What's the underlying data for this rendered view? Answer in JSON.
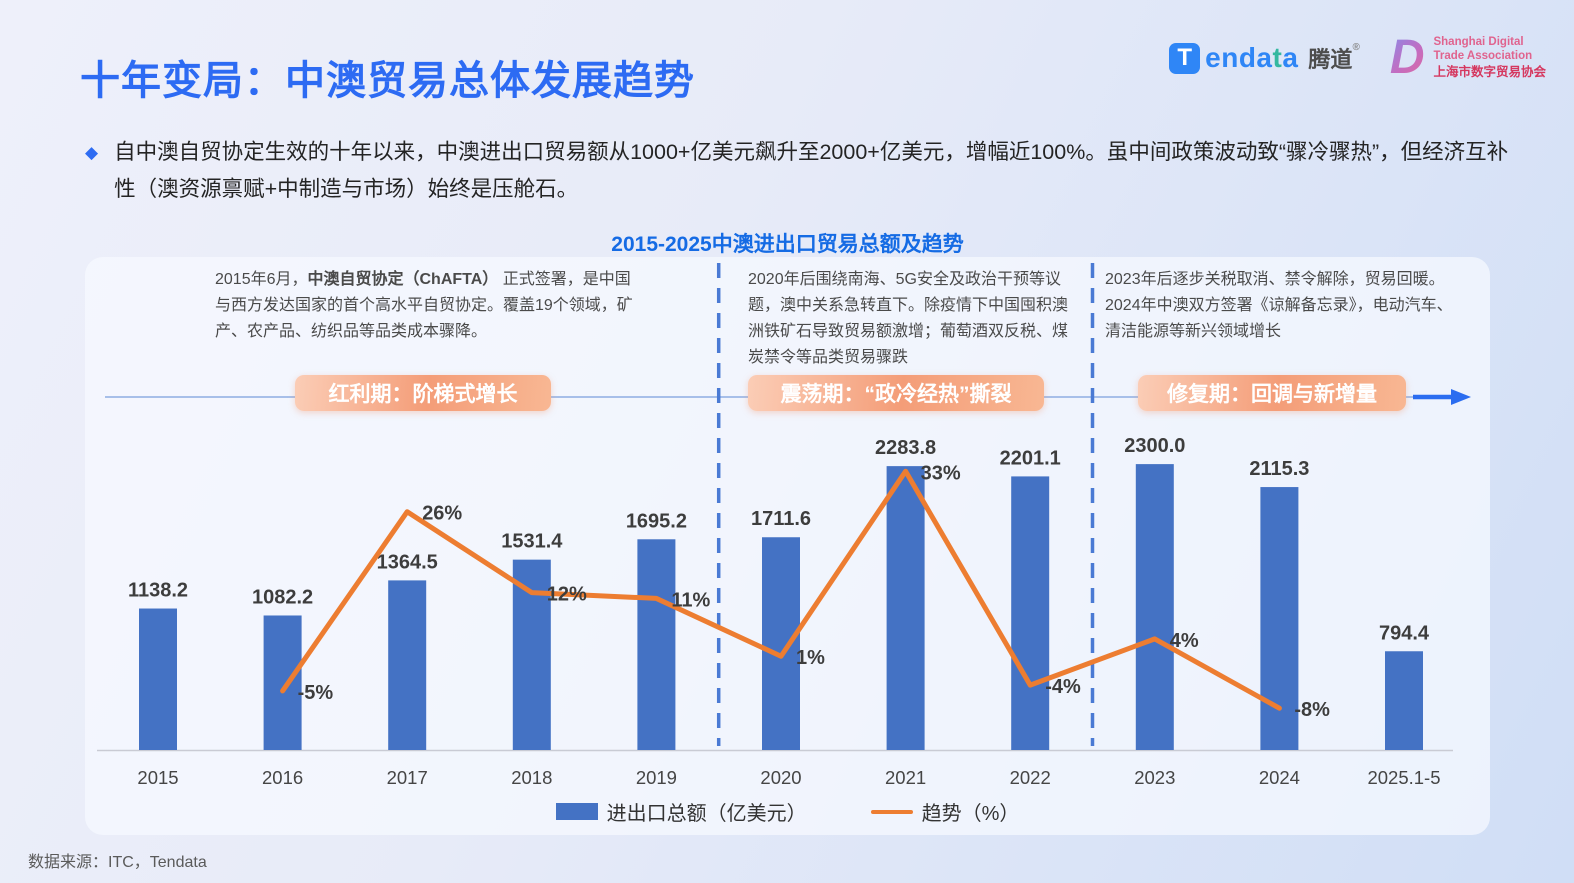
{
  "slide": {
    "title": "十年变局：中澳贸易总体发展趋势",
    "bullet_text": "自中澳自贸协定生效的十年以来，中澳进出口贸易额从1000+亿美元飙升至2000+亿美元，增幅近100%。虽中间政策波动致“骤冷骤热”，但经济互补性（澳资源禀赋+中制造与市场）始终是压舱石。",
    "source_note": "数据来源：ITC，Tendata"
  },
  "logos": {
    "tendata": {
      "icon": "T",
      "word_blue1": "enda",
      "word_teal": "t",
      "word_blue2": "a",
      "cn": "腾道",
      "reg": "®"
    },
    "sdta": {
      "initial": "D",
      "line1": "Shanghai Digital",
      "line2": "Trade Association",
      "line3": "上海市数字贸易协会"
    }
  },
  "chart": {
    "title": "2015-2025中澳进出口贸易总额及趋势",
    "periods": [
      {
        "label": "红利期：阶梯式增长",
        "desc_pre": "2015年6月，",
        "desc_bold": "中澳自贸协定（ChAFTA）",
        "desc_post": " 正式签署，是中国与西方发达国家的首个高水平自贸协定。覆盖19个领域，矿产、农产品、纺织品等品类成本骤降。"
      },
      {
        "label": "震荡期：“政冷经热”撕裂",
        "desc": "2020年后围绕南海、5G安全及政治干预等议题，澳中关系急转直下。除疫情下中国囤积澳洲铁矿石导致贸易额激增；葡萄酒双反税、煤炭禁令等品类贸易骤跌"
      },
      {
        "label": "修复期：回调与新增量",
        "desc": "2023年后逐步关税取消、禁令解除，贸易回暖。 2024年中澳双方签署《谅解备忘录》，电动汽车、清洁能源等新兴领域增长"
      }
    ]
  },
  "chart_data": {
    "type": "combo",
    "title": "2015-2025中澳进出口贸易总额及趋势",
    "categories": [
      "2015",
      "2016",
      "2017",
      "2018",
      "2019",
      "2020",
      "2021",
      "2022",
      "2023",
      "2024",
      "2025.1-5"
    ],
    "series": [
      {
        "name": "进出口总额（亿美元）",
        "type": "bar",
        "color": "#4472c4",
        "values": [
          1138.2,
          1082.2,
          1364.5,
          1531.4,
          1695.2,
          1711.6,
          2283.8,
          2201.1,
          2300.0,
          2115.3,
          794.4
        ],
        "labels": [
          "1138.2",
          "1082.2",
          "1364.5",
          "1531.4",
          "1695.2",
          "1711.6",
          "2283.8",
          "2201.1",
          "2300.0",
          "2115.3",
          "794.4"
        ]
      },
      {
        "name": "趋势（%）",
        "type": "line",
        "color": "#ed7d31",
        "categories": [
          "2016",
          "2017",
          "2018",
          "2019",
          "2020",
          "2021",
          "2022",
          "2023",
          "2024"
        ],
        "values": [
          -5,
          26,
          12,
          11,
          1,
          33,
          -4,
          4,
          -8
        ],
        "labels": [
          "-5%",
          "26%",
          "12%",
          "11%",
          "1%",
          "33%",
          "-4%",
          "4%",
          "-8%"
        ]
      }
    ],
    "xlabel": "",
    "ylabel": "",
    "ylim_bar": [
      0,
      2500
    ],
    "ylim_line_pct": [
      -15,
      40
    ],
    "gridlines": false,
    "value_axes_hidden": true,
    "legend_position": "bottom-center",
    "dividers_after_categories": [
      "2019",
      "2022"
    ],
    "annotations": {
      "timeline_arrow": "right"
    }
  },
  "colors": {
    "title_blue": "#2d6bf3",
    "chart_title_blue": "#156be4",
    "bar_blue": "#4472c4",
    "trend_orange": "#ed7d31",
    "divider_blue": "#4a7ad4",
    "timeline_light_blue": "#a7bfe9",
    "arrow_blue": "#2b6df0",
    "pill_gradient": "#f49d78"
  }
}
